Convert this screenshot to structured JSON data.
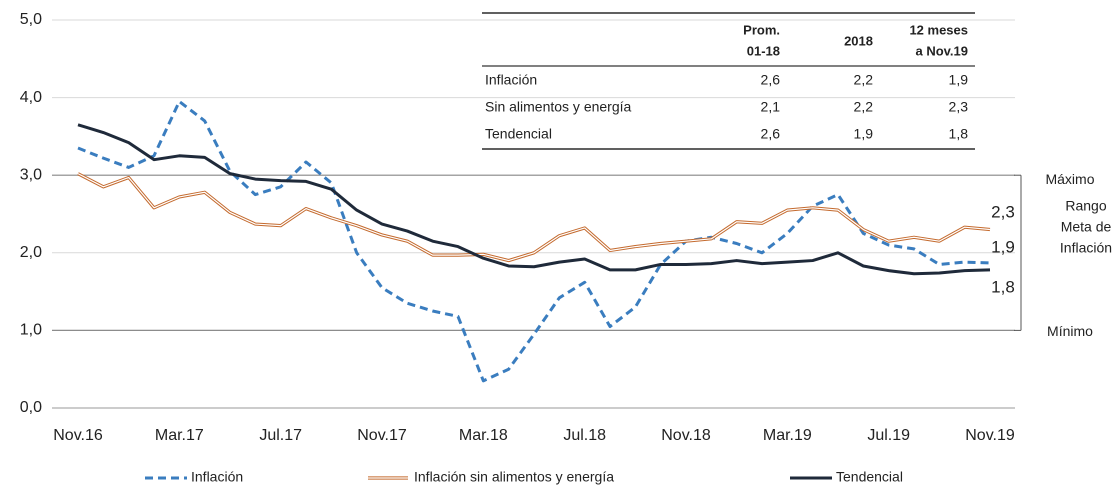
{
  "chart_data": {
    "type": "line",
    "categories": [
      "Nov.16",
      null,
      null,
      null,
      "Mar.17",
      null,
      null,
      null,
      "Jul.17",
      null,
      null,
      null,
      "Nov.17",
      null,
      null,
      null,
      "Mar.18",
      null,
      null,
      null,
      "Jul.18",
      null,
      null,
      null,
      "Nov.18",
      null,
      null,
      null,
      "Mar.19",
      null,
      null,
      null,
      "Jul.19",
      null,
      null,
      null,
      "Nov.19"
    ],
    "series": [
      {
        "name": "Inflación",
        "color": "#3a7dbf",
        "style": "dashed",
        "end_label": "1,9",
        "values": [
          3.35,
          3.22,
          3.1,
          3.25,
          3.95,
          3.7,
          3.05,
          2.75,
          2.85,
          3.17,
          2.9,
          2.0,
          1.55,
          1.35,
          1.25,
          1.18,
          0.35,
          0.5,
          0.95,
          1.42,
          1.62,
          1.05,
          1.3,
          1.85,
          2.15,
          2.2,
          2.12,
          2.0,
          2.25,
          2.6,
          2.75,
          2.25,
          2.1,
          2.05,
          1.85,
          1.88,
          1.87
        ]
      },
      {
        "name": "Inflación sin alimentos y energía",
        "color": "#c46a2e",
        "style": "double",
        "end_label": "2,3",
        "values": [
          3.02,
          2.85,
          2.97,
          2.58,
          2.72,
          2.78,
          2.52,
          2.37,
          2.35,
          2.57,
          2.45,
          2.35,
          2.23,
          2.15,
          1.97,
          1.97,
          1.98,
          1.9,
          2.0,
          2.22,
          2.32,
          2.03,
          2.08,
          2.12,
          2.15,
          2.18,
          2.4,
          2.38,
          2.55,
          2.58,
          2.55,
          2.3,
          2.15,
          2.2,
          2.15,
          2.33,
          2.3
        ]
      },
      {
        "name": "Tendencial",
        "color": "#1f2a3a",
        "style": "solid",
        "end_label": "1,8",
        "values": [
          3.65,
          3.55,
          3.42,
          3.2,
          3.25,
          3.23,
          3.02,
          2.95,
          2.93,
          2.92,
          2.82,
          2.55,
          2.37,
          2.28,
          2.15,
          2.08,
          1.93,
          1.83,
          1.82,
          1.88,
          1.92,
          1.78,
          1.78,
          1.85,
          1.85,
          1.86,
          1.9,
          1.86,
          1.88,
          1.9,
          2.0,
          1.83,
          1.77,
          1.73,
          1.74,
          1.77,
          1.78
        ]
      }
    ],
    "ylim": [
      0,
      5
    ],
    "yticks": [
      {
        "value": 0,
        "label": "0,0"
      },
      {
        "value": 1,
        "label": "1,0"
      },
      {
        "value": 2,
        "label": "2,0"
      },
      {
        "value": 3,
        "label": "3,0"
      },
      {
        "value": 4,
        "label": "4,0"
      },
      {
        "value": 5,
        "label": "5,0"
      }
    ],
    "grid": true,
    "legend": "bottom",
    "target_range": {
      "values": [
        1,
        3
      ],
      "labels": [
        "Mínimo",
        "Máximo"
      ],
      "title": [
        "Rango",
        "Meta de",
        "Inflación"
      ]
    },
    "table": {
      "columns": [
        [
          "Prom.",
          "01-18"
        ],
        [
          "2018"
        ],
        [
          "12 meses",
          "a Nov.19"
        ]
      ],
      "rows": [
        [
          "Inflación",
          "2,6",
          "2,2",
          "1,9"
        ],
        [
          "Sin alimentos y energía",
          "2,1",
          "2,2",
          "2,3"
        ],
        [
          "Tendencial",
          "2,6",
          "1,9",
          "1,8"
        ]
      ]
    }
  }
}
